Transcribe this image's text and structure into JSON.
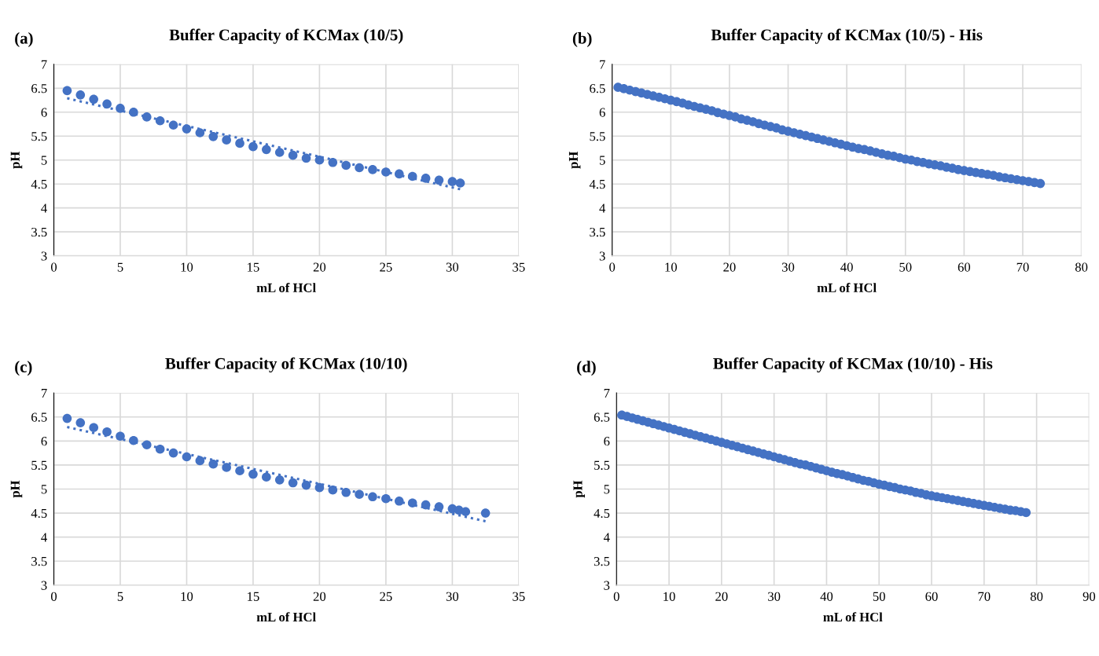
{
  "chart_data": [
    {
      "type": "scatter",
      "title": "Buffer Capacity of KCMax (10/5)",
      "xlabel": "mL of HCl",
      "ylabel": "pH",
      "annotations": [
        "(a)"
      ],
      "xlim": [
        0,
        35
      ],
      "xticks": [
        0,
        5,
        10,
        15,
        20,
        25,
        30,
        35
      ],
      "ylim": [
        3,
        7
      ],
      "yticks": [
        3,
        3.5,
        4,
        4.5,
        5,
        5.5,
        6,
        6.5,
        7
      ],
      "grid": true,
      "series": [
        {
          "marker": "circle",
          "color": "#4472c4",
          "x": [
            1,
            2,
            3,
            4,
            5,
            6,
            7,
            8,
            9,
            10,
            11,
            12,
            13,
            14,
            15,
            16,
            17,
            18,
            19,
            20,
            21,
            22,
            23,
            24,
            25,
            26,
            27,
            28,
            29,
            30,
            30.6
          ],
          "values": [
            6.45,
            6.36,
            6.27,
            6.17,
            6.08,
            6.0,
            5.9,
            5.82,
            5.73,
            5.65,
            5.57,
            5.49,
            5.42,
            5.35,
            5.28,
            5.22,
            5.16,
            5.1,
            5.04,
            5.0,
            4.95,
            4.89,
            4.84,
            4.8,
            4.75,
            4.71,
            4.66,
            4.62,
            4.58,
            4.55,
            4.52
          ]
        },
        {
          "type": "line",
          "color": "#4472c4",
          "line_style": "dotted",
          "x": [
            1,
            30.6
          ],
          "values": [
            6.29,
            4.39
          ]
        }
      ]
    },
    {
      "type": "scatter",
      "title": "Buffer Capacity of KCMax (10/5) - His",
      "xlabel": "mL of HCl",
      "ylabel": "pH",
      "annotations": [
        "(b)"
      ],
      "xlim": [
        0,
        80
      ],
      "xticks": [
        0,
        10,
        20,
        30,
        40,
        50,
        60,
        70,
        80
      ],
      "ylim": [
        3,
        7
      ],
      "yticks": [
        3,
        3.5,
        4,
        4.5,
        5,
        5.5,
        6,
        6.5,
        7
      ],
      "grid": true,
      "series": [
        {
          "marker": "circle",
          "color": "#4472c4",
          "x": [
            1,
            2,
            3,
            4,
            5,
            6,
            7,
            8,
            9,
            10,
            11,
            12,
            13,
            14,
            15,
            16,
            17,
            18,
            19,
            20,
            21,
            22,
            23,
            24,
            25,
            26,
            27,
            28,
            29,
            30,
            31,
            32,
            33,
            34,
            35,
            36,
            37,
            38,
            39,
            40,
            41,
            42,
            43,
            44,
            45,
            46,
            47,
            48,
            49,
            50,
            51,
            52,
            53,
            54,
            55,
            56,
            57,
            58,
            59,
            60,
            61,
            62,
            63,
            64,
            65,
            66,
            67,
            68,
            69,
            70,
            71,
            72,
            73
          ],
          "values": [
            6.52,
            6.49,
            6.46,
            6.43,
            6.4,
            6.37,
            6.34,
            6.31,
            6.28,
            6.25,
            6.22,
            6.19,
            6.15,
            6.12,
            6.09,
            6.06,
            6.03,
            5.99,
            5.96,
            5.93,
            5.9,
            5.86,
            5.83,
            5.8,
            5.76,
            5.73,
            5.7,
            5.67,
            5.63,
            5.6,
            5.57,
            5.54,
            5.51,
            5.48,
            5.45,
            5.42,
            5.39,
            5.36,
            5.33,
            5.3,
            5.27,
            5.24,
            5.22,
            5.19,
            5.16,
            5.13,
            5.1,
            5.08,
            5.05,
            5.02,
            5.0,
            4.97,
            4.95,
            4.92,
            4.9,
            4.88,
            4.85,
            4.83,
            4.8,
            4.78,
            4.76,
            4.74,
            4.72,
            4.7,
            4.68,
            4.65,
            4.63,
            4.61,
            4.59,
            4.57,
            4.55,
            4.53,
            4.51
          ]
        }
      ]
    },
    {
      "type": "scatter",
      "title": "Buffer Capacity of KCMax (10/10)",
      "xlabel": "mL of HCl",
      "ylabel": "pH",
      "annotations": [
        "(c)"
      ],
      "xlim": [
        0,
        35
      ],
      "xticks": [
        0,
        5,
        10,
        15,
        20,
        25,
        30,
        35
      ],
      "ylim": [
        3,
        7
      ],
      "yticks": [
        3,
        3.5,
        4,
        4.5,
        5,
        5.5,
        6,
        6.5,
        7
      ],
      "grid": true,
      "series": [
        {
          "marker": "circle",
          "color": "#4472c4",
          "x": [
            1,
            2,
            3,
            4,
            5,
            6,
            7,
            8,
            9,
            10,
            11,
            12,
            13,
            14,
            15,
            16,
            17,
            18,
            19,
            20,
            21,
            22,
            23,
            24,
            25,
            26,
            27,
            28,
            29,
            30,
            30.5,
            31,
            32.5
          ],
          "values": [
            6.47,
            6.38,
            6.28,
            6.19,
            6.1,
            6.01,
            5.92,
            5.83,
            5.75,
            5.67,
            5.59,
            5.52,
            5.45,
            5.38,
            5.31,
            5.25,
            5.19,
            5.13,
            5.08,
            5.03,
            4.98,
            4.93,
            4.89,
            4.84,
            4.8,
            4.75,
            4.71,
            4.67,
            4.63,
            4.59,
            4.56,
            4.53,
            4.5
          ]
        },
        {
          "type": "line",
          "color": "#4472c4",
          "line_style": "dotted",
          "x": [
            1,
            32.5
          ],
          "values": [
            6.29,
            4.33
          ]
        }
      ]
    },
    {
      "type": "scatter",
      "title": "Buffer Capacity of KCMax (10/10) - His",
      "xlabel": "mL of HCl",
      "ylabel": "pH",
      "annotations": [
        "(d)"
      ],
      "xlim": [
        0,
        90
      ],
      "xticks": [
        0,
        10,
        20,
        30,
        40,
        50,
        60,
        70,
        80,
        90
      ],
      "ylim": [
        3,
        7
      ],
      "yticks": [
        3,
        3.5,
        4,
        4.5,
        5,
        5.5,
        6,
        6.5,
        7
      ],
      "grid": true,
      "series": [
        {
          "marker": "circle",
          "color": "#4472c4",
          "x": [
            1,
            2,
            3,
            4,
            5,
            6,
            7,
            8,
            9,
            10,
            11,
            12,
            13,
            14,
            15,
            16,
            17,
            18,
            19,
            20,
            21,
            22,
            23,
            24,
            25,
            26,
            27,
            28,
            29,
            30,
            31,
            32,
            33,
            34,
            35,
            36,
            37,
            38,
            39,
            40,
            41,
            42,
            43,
            44,
            45,
            46,
            47,
            48,
            49,
            50,
            51,
            52,
            53,
            54,
            55,
            56,
            57,
            58,
            59,
            60,
            61,
            62,
            63,
            64,
            65,
            66,
            67,
            68,
            69,
            70,
            71,
            72,
            73,
            74,
            75,
            76,
            77,
            78
          ],
          "values": [
            6.54,
            6.51,
            6.48,
            6.45,
            6.42,
            6.39,
            6.36,
            6.33,
            6.3,
            6.27,
            6.24,
            6.21,
            6.18,
            6.15,
            6.12,
            6.09,
            6.06,
            6.03,
            6.0,
            5.97,
            5.94,
            5.91,
            5.88,
            5.85,
            5.82,
            5.79,
            5.76,
            5.73,
            5.7,
            5.67,
            5.64,
            5.61,
            5.58,
            5.55,
            5.52,
            5.5,
            5.47,
            5.44,
            5.41,
            5.38,
            5.35,
            5.32,
            5.3,
            5.27,
            5.24,
            5.21,
            5.18,
            5.16,
            5.13,
            5.1,
            5.08,
            5.05,
            5.03,
            5.0,
            4.98,
            4.96,
            4.93,
            4.91,
            4.88,
            4.86,
            4.84,
            4.82,
            4.8,
            4.78,
            4.76,
            4.74,
            4.72,
            4.7,
            4.68,
            4.66,
            4.64,
            4.62,
            4.6,
            4.58,
            4.56,
            4.55,
            4.53,
            4.51
          ]
        }
      ]
    }
  ]
}
